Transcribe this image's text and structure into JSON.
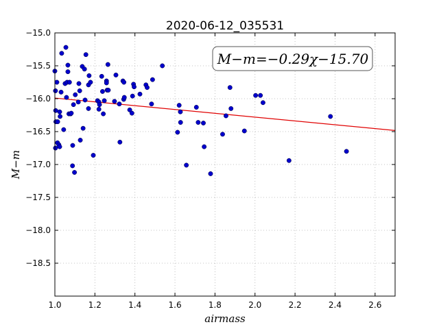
{
  "chart_data": {
    "type": "scatter",
    "title": "2020-06-12_035531",
    "xlabel": "airmass",
    "ylabel": "M−m",
    "xlim": [
      1.0,
      2.7
    ],
    "ylim": [
      -19.0,
      -15.0
    ],
    "y_inverted": true,
    "grid": true,
    "x_ticks": [
      1.0,
      1.2,
      1.4,
      1.6,
      1.8,
      2.0,
      2.2,
      2.4,
      2.6
    ],
    "y_ticks": [
      -15.0,
      -15.5,
      -16.0,
      -16.5,
      -17.0,
      -17.5,
      -18.0,
      -18.5
    ],
    "x_tick_labels": [
      "1.0",
      "1.2",
      "1.4",
      "1.6",
      "1.8",
      "2.0",
      "2.2",
      "2.4",
      "2.6"
    ],
    "y_tick_labels": [
      "−15.0",
      "−15.5",
      "−16.0",
      "−16.5",
      "−17.0",
      "−17.5",
      "−18.0",
      "−18.5"
    ],
    "annotation": "M−m=−0.29χ−15.70",
    "fit": {
      "slope": -0.29,
      "intercept": -15.7,
      "color": "#e00000"
    },
    "point_color": "#0000cc",
    "points": [
      [
        1.0,
        -15.58
      ],
      [
        1.003,
        -15.88
      ],
      [
        1.004,
        -16.18
      ],
      [
        1.005,
        -16.35
      ],
      [
        1.003,
        -16.75
      ],
      [
        1.01,
        -15.75
      ],
      [
        1.014,
        -16.35
      ],
      [
        1.013,
        -16.67
      ],
      [
        1.02,
        -16.7
      ],
      [
        1.024,
        -16.73
      ],
      [
        1.026,
        -16.27
      ],
      [
        1.024,
        -16.2
      ],
      [
        1.031,
        -15.9
      ],
      [
        1.034,
        -15.31
      ],
      [
        1.044,
        -16.47
      ],
      [
        1.051,
        -15.77
      ],
      [
        1.055,
        -15.22
      ],
      [
        1.058,
        -15.98
      ],
      [
        1.061,
        -15.75
      ],
      [
        1.065,
        -15.59
      ],
      [
        1.065,
        -15.49
      ],
      [
        1.073,
        -15.75
      ],
      [
        1.07,
        -16.23
      ],
      [
        1.079,
        -16.23
      ],
      [
        1.082,
        -16.22
      ],
      [
        1.089,
        -16.71
      ],
      [
        1.088,
        -17.02
      ],
      [
        1.093,
        -16.09
      ],
      [
        1.098,
        -17.12
      ],
      [
        1.102,
        -15.94
      ],
      [
        1.117,
        -16.05
      ],
      [
        1.12,
        -15.77
      ],
      [
        1.124,
        -15.88
      ],
      [
        1.127,
        -16.63
      ],
      [
        1.137,
        -15.51
      ],
      [
        1.141,
        -16.45
      ],
      [
        1.148,
        -15.55
      ],
      [
        1.151,
        -16.02
      ],
      [
        1.155,
        -15.33
      ],
      [
        1.168,
        -16.15
      ],
      [
        1.168,
        -15.79
      ],
      [
        1.171,
        -15.65
      ],
      [
        1.178,
        -15.75
      ],
      [
        1.192,
        -16.86
      ],
      [
        1.213,
        -16.03
      ],
      [
        1.22,
        -16.05
      ],
      [
        1.22,
        -16.16
      ],
      [
        1.223,
        -16.09
      ],
      [
        1.234,
        -15.66
      ],
      [
        1.238,
        -15.89
      ],
      [
        1.242,
        -16.23
      ],
      [
        1.247,
        -16.03
      ],
      [
        1.258,
        -15.73
      ],
      [
        1.258,
        -15.76
      ],
      [
        1.261,
        -15.87
      ],
      [
        1.265,
        -15.48
      ],
      [
        1.267,
        -15.87
      ],
      [
        1.298,
        -16.04
      ],
      [
        1.305,
        -15.64
      ],
      [
        1.322,
        -16.08
      ],
      [
        1.325,
        -16.66
      ],
      [
        1.34,
        -15.73
      ],
      [
        1.344,
        -16.01
      ],
      [
        1.347,
        -15.98
      ],
      [
        1.345,
        -15.75
      ],
      [
        1.374,
        -16.17
      ],
      [
        1.385,
        -16.22
      ],
      [
        1.388,
        -15.96
      ],
      [
        1.393,
        -15.78
      ],
      [
        1.396,
        -15.82
      ],
      [
        1.425,
        -15.93
      ],
      [
        1.455,
        -15.79
      ],
      [
        1.461,
        -15.83
      ],
      [
        1.483,
        -16.08
      ],
      [
        1.488,
        -15.71
      ],
      [
        1.537,
        -15.5
      ],
      [
        1.613,
        -16.51
      ],
      [
        1.621,
        -16.1
      ],
      [
        1.627,
        -16.2
      ],
      [
        1.628,
        -16.36
      ],
      [
        1.657,
        -17.01
      ],
      [
        1.707,
        -16.13
      ],
      [
        1.716,
        -16.36
      ],
      [
        1.742,
        -16.37
      ],
      [
        1.746,
        -16.73
      ],
      [
        1.778,
        -17.14
      ],
      [
        1.838,
        -16.54
      ],
      [
        1.855,
        -16.26
      ],
      [
        1.875,
        -15.83
      ],
      [
        1.88,
        -16.15
      ],
      [
        1.947,
        -16.49
      ],
      [
        2.003,
        -15.95
      ],
      [
        2.027,
        -15.95
      ],
      [
        2.04,
        -16.06
      ],
      [
        2.17,
        -16.94
      ],
      [
        2.377,
        -16.27
      ],
      [
        2.457,
        -16.8
      ]
    ]
  }
}
